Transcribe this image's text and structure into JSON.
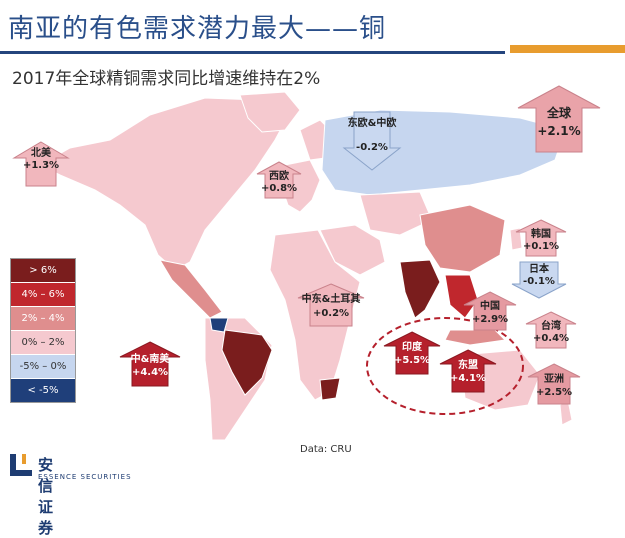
{
  "header": {
    "title": "南亚的有色需求潜力最大——铜",
    "subtitle": "2017年全球精铜需求同比增速维持在2%"
  },
  "colors": {
    "header_blue": "#24457d",
    "accent_orange": "#e89c2e",
    "up_arrow": "#b5202c",
    "up_arrow_light": "#f1b7bd",
    "down_arrow": "#c9d8f0"
  },
  "legend": [
    {
      "label": "> 6%",
      "color": "#7a1d1d"
    },
    {
      "label": "4% – 6%",
      "color": "#c0272d"
    },
    {
      "label": "2% – 4%",
      "color": "#df8e8e"
    },
    {
      "label": "0% – 2%",
      "color": "#f5c9cf"
    },
    {
      "label": "-5% – 0%",
      "color": "#c6d6ef"
    },
    {
      "label": "< -5%",
      "color": "#1f3f7a"
    }
  ],
  "regions": {
    "north_america": {
      "name": "北美",
      "value": "+1.3%"
    },
    "western_europe": {
      "name": "西欧",
      "value": "+0.8%"
    },
    "eastern_europe": {
      "name": "东欧&中欧",
      "value": "-0.2%"
    },
    "global": {
      "name": "全球",
      "value": "+2.1%"
    },
    "korea": {
      "name": "韩国",
      "value": "+0.1%"
    },
    "japan": {
      "name": "日本",
      "value": "-0.1%"
    },
    "middle_east": {
      "name": "中东&土耳其",
      "value": "+0.2%"
    },
    "china": {
      "name": "中国",
      "value": "+2.9%"
    },
    "taiwan": {
      "name": "台湾",
      "value": "+0.4%"
    },
    "asia": {
      "name": "亚洲",
      "value": "+2.5%"
    },
    "india": {
      "name": "印度",
      "value": "+5.5%"
    },
    "asean": {
      "name": "东盟",
      "value": "+4.1%"
    },
    "south_america": {
      "name": "中&南美",
      "value": "+4.4%"
    }
  },
  "source": "Data: CRU",
  "logo": {
    "name": "安信证券",
    "en": "ESSENCE SECURITIES"
  }
}
